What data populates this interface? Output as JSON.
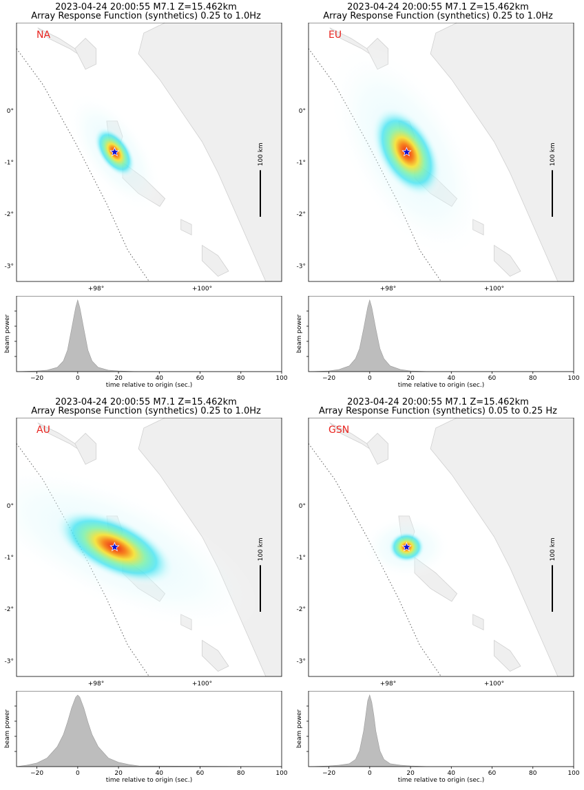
{
  "panels": [
    {
      "title_line1": "2023-04-24 20:00:55 M7.1 Z=15.462km",
      "title_line2": "Array Response Function (synthetics) 0.25 to 1.0Hz",
      "network": "NA",
      "response_lobe": {
        "major_deg": 0.55,
        "minor_deg": 0.3,
        "tilt_deg": 55,
        "peak_power": 1.0
      }
    },
    {
      "title_line1": "2023-04-24 20:00:55 M7.1 Z=15.462km",
      "title_line2": "Array Response Function (synthetics) 0.25 to 1.0Hz",
      "network": "EU",
      "response_lobe": {
        "major_deg": 0.95,
        "minor_deg": 0.55,
        "tilt_deg": 60,
        "peak_power": 1.0
      }
    },
    {
      "title_line1": "2023-04-24 20:00:55 M7.1 Z=15.462km",
      "title_line2": "Array Response Function (synthetics) 0.25 to 1.0Hz",
      "network": "AU",
      "response_lobe": {
        "major_deg": 1.25,
        "minor_deg": 0.55,
        "tilt_deg": 25,
        "peak_power": 1.0
      }
    },
    {
      "title_line1": "2023-04-24 20:00:55 M7.1 Z=15.462km",
      "title_line2": "Array Response Function (synthetics) 0.05 to 0.25 Hz",
      "network": "GSN",
      "response_lobe": {
        "major_deg": 0.35,
        "minor_deg": 0.3,
        "tilt_deg": 0,
        "peak_power": 1.0
      }
    }
  ],
  "map": {
    "lon_range": [
      96.5,
      101.5
    ],
    "lat_range": [
      -3.3,
      1.7
    ],
    "lon_ticks": [
      "+98°",
      "+100°"
    ],
    "lat_ticks": [
      "0°",
      "-1°",
      "-2°",
      "-3°"
    ],
    "epicenter": {
      "lon": 98.35,
      "lat": -0.8
    },
    "scale_bar_label": "100 km",
    "colors": {
      "land": "#efefef",
      "coast": "#cfcfcf",
      "star": "#1010d0",
      "trench": "#555555"
    }
  },
  "chart_data": [
    {
      "type": "area",
      "network": "NA",
      "xlabel": "time relative to origin (sec.)",
      "ylabel": "beam power",
      "xlim": [
        -30,
        100
      ],
      "x_ticks": [
        -20,
        0,
        20,
        40,
        60,
        80,
        100
      ],
      "x": [
        -30,
        -20,
        -15,
        -10,
        -7,
        -5,
        -3,
        -2,
        -1,
        0,
        1,
        2,
        3,
        5,
        7,
        10,
        15,
        20,
        30,
        100
      ],
      "y": [
        0,
        0.01,
        0.02,
        0.06,
        0.15,
        0.3,
        0.6,
        0.75,
        0.9,
        1.0,
        0.9,
        0.75,
        0.6,
        0.3,
        0.15,
        0.06,
        0.02,
        0.01,
        0,
        0
      ]
    },
    {
      "type": "area",
      "network": "EU",
      "xlabel": "time relative to origin (sec.)",
      "ylabel": "beam power",
      "xlim": [
        -30,
        100
      ],
      "x_ticks": [
        -20,
        0,
        20,
        40,
        60,
        80,
        100
      ],
      "x": [
        -30,
        -20,
        -15,
        -10,
        -7,
        -5,
        -3,
        -2,
        -1,
        0,
        1,
        2,
        3,
        5,
        7,
        10,
        15,
        20,
        30,
        100
      ],
      "y": [
        0,
        0.01,
        0.03,
        0.08,
        0.18,
        0.32,
        0.6,
        0.75,
        0.9,
        1.0,
        0.9,
        0.75,
        0.6,
        0.32,
        0.18,
        0.08,
        0.03,
        0.01,
        0,
        0
      ]
    },
    {
      "type": "area",
      "network": "AU",
      "xlabel": "time relative to origin (sec.)",
      "ylabel": "beam power",
      "xlim": [
        -30,
        100
      ],
      "x_ticks": [
        -20,
        0,
        20,
        40,
        60,
        80,
        100
      ],
      "x": [
        -30,
        -25,
        -20,
        -15,
        -10,
        -7,
        -5,
        -3,
        -1,
        0,
        1,
        3,
        5,
        7,
        10,
        15,
        20,
        25,
        30,
        100
      ],
      "y": [
        0,
        0.02,
        0.05,
        0.12,
        0.28,
        0.45,
        0.62,
        0.82,
        0.97,
        1.0,
        0.97,
        0.82,
        0.62,
        0.45,
        0.28,
        0.12,
        0.06,
        0.03,
        0.01,
        0
      ]
    },
    {
      "type": "area",
      "network": "GSN",
      "xlabel": "time relative to origin (sec.)",
      "ylabel": "beam power",
      "xlim": [
        -30,
        100
      ],
      "x_ticks": [
        -20,
        0,
        20,
        40,
        60,
        80,
        100
      ],
      "x": [
        -30,
        -20,
        -15,
        -10,
        -7,
        -5,
        -3,
        -2,
        -1,
        0,
        1,
        2,
        3,
        5,
        7,
        10,
        15,
        20,
        30,
        100
      ],
      "y": [
        0,
        0.01,
        0.02,
        0.04,
        0.1,
        0.22,
        0.5,
        0.7,
        0.92,
        1.0,
        0.9,
        0.72,
        0.5,
        0.22,
        0.1,
        0.04,
        0.02,
        0.01,
        0,
        0
      ]
    }
  ]
}
